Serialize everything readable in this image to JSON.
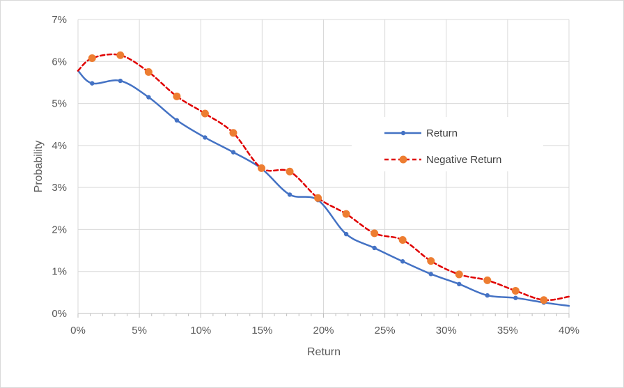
{
  "chart_data": {
    "type": "line",
    "title": "",
    "xlabel": "Return",
    "ylabel": "Probability",
    "xlim": [
      0,
      0.4
    ],
    "ylim": [
      0,
      0.07
    ],
    "x_tick_labels": [
      "0%",
      "5%",
      "10%",
      "15%",
      "20%",
      "25%",
      "30%",
      "35%",
      "40%"
    ],
    "y_tick_labels": [
      "0%",
      "1%",
      "2%",
      "3%",
      "4%",
      "5%",
      "6%",
      "7%"
    ],
    "grid": true,
    "legend_position": "right",
    "series": [
      {
        "name": "Return",
        "color": "#4472c4",
        "line_style": "solid",
        "marker": "small-circle",
        "start": [
          0.0,
          0.0578
        ],
        "end": [
          0.4,
          0.0018
        ],
        "points": [
          [
            0.0115,
            0.0548
          ],
          [
            0.0345,
            0.0554
          ],
          [
            0.0575,
            0.0515
          ],
          [
            0.0805,
            0.046
          ],
          [
            0.1035,
            0.0419
          ],
          [
            0.1265,
            0.0384
          ],
          [
            0.1495,
            0.0345
          ],
          [
            0.1725,
            0.0283
          ],
          [
            0.1955,
            0.027
          ],
          [
            0.2185,
            0.0189
          ],
          [
            0.2415,
            0.0156
          ],
          [
            0.2645,
            0.0124
          ],
          [
            0.2875,
            0.0094
          ],
          [
            0.3105,
            0.007
          ],
          [
            0.3335,
            0.0043
          ],
          [
            0.3565,
            0.0037
          ],
          [
            0.3795,
            0.0026
          ]
        ]
      },
      {
        "name": "Negative Return",
        "color": "#ed7d31",
        "line_color": "#e00000",
        "line_style": "dashed",
        "marker": "large-circle",
        "start": [
          0.0,
          0.0578
        ],
        "end": [
          0.4,
          0.004
        ],
        "points": [
          [
            0.0115,
            0.0608
          ],
          [
            0.0345,
            0.0615
          ],
          [
            0.0575,
            0.0575
          ],
          [
            0.0805,
            0.0517
          ],
          [
            0.1035,
            0.0476
          ],
          [
            0.1265,
            0.043
          ],
          [
            0.1495,
            0.0346
          ],
          [
            0.1725,
            0.0338
          ],
          [
            0.1955,
            0.0275
          ],
          [
            0.2185,
            0.0237
          ],
          [
            0.2415,
            0.0191
          ],
          [
            0.2645,
            0.0175
          ],
          [
            0.2875,
            0.0125
          ],
          [
            0.3105,
            0.0093
          ],
          [
            0.3335,
            0.0079
          ],
          [
            0.3565,
            0.0054
          ],
          [
            0.3795,
            0.0032
          ]
        ]
      }
    ]
  }
}
